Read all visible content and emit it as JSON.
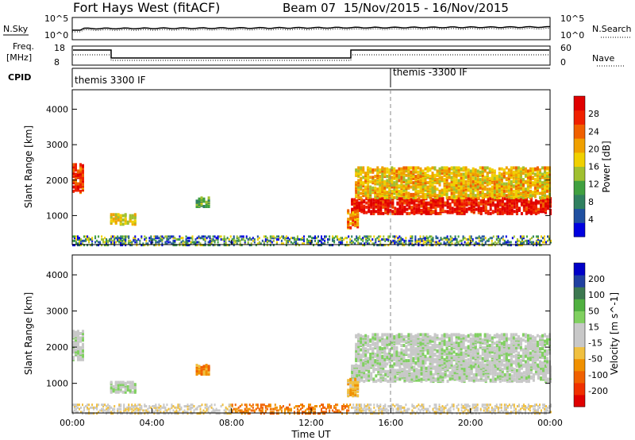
{
  "header": {
    "station": "Fort Hays West (fitACF)",
    "beam_info": "Beam 07  15/Nov/2015 - 16/Nov/2015"
  },
  "top_panels": {
    "nsky_label": "N.Sky",
    "nsearch_label": "N.Search",
    "nsky_ticks": [
      "10^5",
      "10^0"
    ],
    "nsearch_ticks": [
      "10^5",
      "10^0"
    ],
    "freq_label_1": "Freq.",
    "freq_label_2": "[MHz]",
    "freq_ticks": [
      "18",
      "8"
    ],
    "nave_label": "Nave",
    "nave_ticks": [
      "60",
      "0"
    ],
    "cpid_label": "CPID",
    "cpid_1": "themis 3300 IF",
    "cpid_2": "themis -3300 IF"
  },
  "chart_data": [
    {
      "type": "heatmap",
      "name": "power",
      "ylabel": "Slant Range [km]",
      "xlabel": "Time UT",
      "x_ticks": [
        "00:00",
        "04:00",
        "08:00",
        "12:00",
        "16:00",
        "20:00",
        "00:00"
      ],
      "x_range_hours": [
        0,
        24
      ],
      "y_ticks": [
        1000,
        2000,
        3000,
        4000
      ],
      "ylim": [
        180,
        4550
      ],
      "colorbar_label": "Power [dB]",
      "colorbar_ticks": [
        "4",
        "8",
        "12",
        "16",
        "20",
        "24",
        "28"
      ],
      "colorbar_range": [
        0,
        30
      ],
      "colorbar_colors": [
        "#0000e0",
        "#2050a0",
        "#308060",
        "#40a040",
        "#a0c030",
        "#f0d000",
        "#f0a000",
        "#f06000",
        "#f02000",
        "#e00000"
      ]
    },
    {
      "type": "heatmap",
      "name": "velocity",
      "ylabel": "Slant Range [km]",
      "xlabel": "Time UT",
      "x_ticks": [
        "00:00",
        "04:00",
        "08:00",
        "12:00",
        "16:00",
        "20:00",
        "00:00"
      ],
      "x_range_hours": [
        0,
        24
      ],
      "y_ticks": [
        1000,
        2000,
        3000,
        4000
      ],
      "ylim": [
        180,
        4550
      ],
      "colorbar_label": "Velocity [m s^-1]",
      "colorbar_ticks": [
        "200",
        "100",
        "50",
        "15",
        "-15",
        "-50",
        "-100",
        "-200"
      ],
      "colorbar_colors": [
        "#0000c8",
        "#2040a0",
        "#3c7850",
        "#50b040",
        "#80d060",
        "#c8c8c8",
        "#c8c8c8",
        "#f0c040",
        "#f09000",
        "#f06000",
        "#f03000",
        "#e00000"
      ]
    }
  ],
  "footer": {
    "xlabel": "Time UT"
  }
}
